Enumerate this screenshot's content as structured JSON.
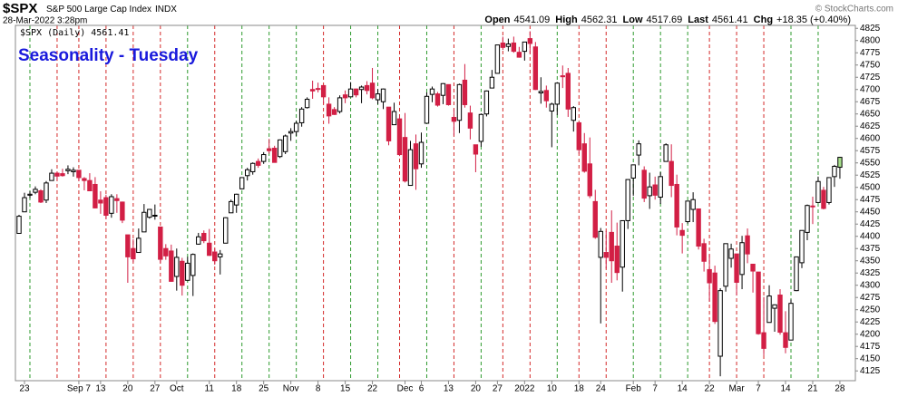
{
  "chart_data": {
    "type": "candlestick",
    "title": "Seasonality - Tuesday",
    "title_color": "#1a1adc",
    "symbol": "$SPX",
    "description": "S&P 500 Large Cap Index",
    "exchange": "INDX",
    "date": "28-Mar-2022 3:28pm",
    "quote": [
      {
        "label": "Open",
        "value": 4541.09
      },
      {
        "label": "High",
        "value": 4562.31
      },
      {
        "label": "Low",
        "value": 4517.69
      },
      {
        "label": "Last",
        "value": 4561.41
      }
    ],
    "change_label": "Chg",
    "change": "+18.35 (+0.40%)",
    "source": "© StockCharts.com",
    "legend": "$SPX (Daily) 4561.41",
    "up_color": "#ffffff",
    "down_color": "#d21f45",
    "edge_color": "#000000",
    "last_color": "#a8e08c",
    "tuesday_up_color": "#2e9a2e",
    "tuesday_down_color": "#d42a2a",
    "ylim": [
      4105,
      4831
    ],
    "yticks": [
      4125,
      4150,
      4175,
      4200,
      4225,
      4250,
      4275,
      4300,
      4325,
      4350,
      4375,
      4400,
      4425,
      4450,
      4475,
      4500,
      4525,
      4550,
      4575,
      4600,
      4625,
      4650,
      4675,
      4700,
      4725,
      4750,
      4775,
      4800,
      4825
    ],
    "categories": [
      null,
      "23",
      null,
      null,
      null,
      null,
      null,
      null,
      null,
      null,
      null,
      "Sep 7",
      null,
      null,
      null,
      "13",
      null,
      null,
      null,
      null,
      "20",
      null,
      null,
      null,
      null,
      "27",
      null,
      null,
      null,
      "Oct",
      null,
      null,
      null,
      null,
      null,
      "11",
      null,
      null,
      null,
      null,
      "18",
      null,
      null,
      null,
      null,
      "25",
      null,
      null,
      null,
      null,
      "Nov",
      null,
      null,
      null,
      null,
      "8",
      null,
      null,
      null,
      null,
      "15",
      null,
      null,
      null,
      null,
      "22",
      null,
      null,
      null,
      null,
      null,
      "Dec",
      null,
      null,
      "6",
      null,
      null,
      null,
      null,
      "13",
      null,
      null,
      null,
      null,
      "20",
      null,
      null,
      null,
      "27",
      null,
      null,
      null,
      null,
      "2022",
      null,
      null,
      null,
      null,
      "10",
      null,
      null,
      null,
      null,
      "18",
      null,
      null,
      null,
      "24",
      null,
      null,
      null,
      null,
      null,
      "Feb",
      null,
      null,
      null,
      "7",
      null,
      null,
      null,
      null,
      "14",
      null,
      null,
      null,
      null,
      "22",
      null,
      null,
      null,
      null,
      "Mar",
      null,
      null,
      null,
      "7",
      null,
      null,
      null,
      null,
      "14",
      null,
      null,
      null,
      null,
      "21",
      null,
      null,
      null,
      null,
      "28"
    ],
    "ohlc": [
      [
        4406,
        4444,
        4406,
        4441
      ],
      [
        4450,
        4489,
        4450,
        4479
      ],
      [
        4484,
        4492,
        4478,
        4486
      ],
      [
        4490,
        4502,
        4486,
        4496
      ],
      [
        4493,
        4496,
        4468,
        4470
      ],
      [
        4474,
        4513,
        4468,
        4509
      ],
      [
        4514,
        4537,
        4514,
        4529
      ],
      [
        4529,
        4531,
        4515,
        4523
      ],
      [
        4528,
        4538,
        4522,
        4524
      ],
      [
        4534,
        4545,
        4527,
        4537
      ],
      [
        4532,
        4541,
        4522,
        4535
      ],
      [
        4535,
        4535,
        4513,
        4520
      ],
      [
        4518,
        4521,
        4494,
        4514
      ],
      [
        4514,
        4529,
        4493,
        4493
      ],
      [
        4506,
        4521,
        4457,
        4458
      ],
      [
        4474,
        4492,
        4446,
        4468
      ],
      [
        4479,
        4485,
        4435,
        4443
      ],
      [
        4447,
        4486,
        4438,
        4481
      ],
      [
        4477,
        4486,
        4448,
        4473
      ],
      [
        4470,
        4471,
        4427,
        4433
      ],
      [
        4403,
        4403,
        4305,
        4358
      ],
      [
        4375,
        4394,
        4347,
        4354
      ],
      [
        4367,
        4416,
        4367,
        4396
      ],
      [
        4409,
        4466,
        4409,
        4449
      ],
      [
        4439,
        4456,
        4436,
        4455
      ],
      [
        4443,
        4465,
        4434,
        4443
      ],
      [
        4419,
        4419,
        4346,
        4353
      ],
      [
        4375,
        4384,
        4352,
        4360
      ],
      [
        4370,
        4383,
        4307,
        4308
      ],
      [
        4318,
        4375,
        4289,
        4357
      ],
      [
        4349,
        4356,
        4279,
        4300
      ],
      [
        4310,
        4358,
        4310,
        4345
      ],
      [
        4320,
        4365,
        4278,
        4363
      ],
      [
        4384,
        4407,
        4383,
        4399
      ],
      [
        4406,
        4412,
        4386,
        4391
      ],
      [
        4386,
        4415,
        4360,
        4361
      ],
      [
        4368,
        4375,
        4342,
        4350
      ],
      [
        4358,
        4372,
        4322,
        4364
      ],
      [
        4386,
        4439,
        4386,
        4438
      ],
      [
        4448,
        4475,
        4448,
        4471
      ],
      [
        4464,
        4487,
        4448,
        4486
      ],
      [
        4497,
        4520,
        4496,
        4520
      ],
      [
        4524,
        4540,
        4514,
        4536
      ],
      [
        4532,
        4551,
        4526,
        4549
      ],
      [
        4553,
        4559,
        4540,
        4545
      ],
      [
        4553,
        4572,
        4548,
        4567
      ],
      [
        4579,
        4599,
        4569,
        4575
      ],
      [
        4580,
        4585,
        4551,
        4551
      ],
      [
        4563,
        4598,
        4560,
        4597
      ],
      [
        4573,
        4608,
        4568,
        4605
      ],
      [
        4611,
        4621,
        4595,
        4614
      ],
      [
        4614,
        4636,
        4605,
        4631
      ],
      [
        4632,
        4664,
        4624,
        4660
      ],
      [
        4663,
        4684,
        4661,
        4680
      ],
      [
        4700,
        4718,
        4681,
        4697
      ],
      [
        4702,
        4714,
        4694,
        4701
      ],
      [
        4708,
        4708,
        4671,
        4685
      ],
      [
        4670,
        4684,
        4630,
        4646
      ],
      [
        4659,
        4664,
        4648,
        4649
      ],
      [
        4655,
        4688,
        4651,
        4683
      ],
      [
        4689,
        4698,
        4672,
        4683
      ],
      [
        4685,
        4715,
        4685,
        4701
      ],
      [
        4701,
        4702,
        4684,
        4689
      ],
      [
        4700,
        4708,
        4672,
        4705
      ],
      [
        4708,
        4717,
        4690,
        4698
      ],
      [
        4713,
        4744,
        4680,
        4683
      ],
      [
        4679,
        4701,
        4670,
        4691
      ],
      [
        4675,
        4702,
        4660,
        4701
      ],
      [
        4664,
        4664,
        4586,
        4595
      ],
      [
        4628,
        4673,
        4628,
        4655
      ],
      [
        4640,
        4647,
        4564,
        4567
      ],
      [
        4602,
        4652,
        4510,
        4513
      ],
      [
        4504,
        4595,
        4504,
        4577
      ],
      [
        4589,
        4608,
        4495,
        4538
      ],
      [
        4548,
        4612,
        4540,
        4592
      ],
      [
        4631,
        4694,
        4631,
        4686
      ],
      [
        4690,
        4706,
        4674,
        4701
      ],
      [
        4691,
        4695,
        4665,
        4668
      ],
      [
        4688,
        4713,
        4670,
        4712
      ],
      [
        4710,
        4710,
        4667,
        4669
      ],
      [
        4643,
        4660,
        4606,
        4635
      ],
      [
        4637,
        4712,
        4611,
        4710
      ],
      [
        4719,
        4752,
        4663,
        4669
      ],
      [
        4652,
        4667,
        4598,
        4621
      ],
      [
        4587,
        4587,
        4531,
        4568
      ],
      [
        4594,
        4651,
        4583,
        4649
      ],
      [
        4650,
        4698,
        4645,
        4697
      ],
      [
        4703,
        4740,
        4703,
        4725
      ],
      [
        4733,
        4791,
        4733,
        4791
      ],
      [
        4795,
        4808,
        4781,
        4786
      ],
      [
        4788,
        4804,
        4778,
        4793
      ],
      [
        4795,
        4808,
        4775,
        4778
      ],
      [
        4776,
        4787,
        4765,
        4766
      ],
      [
        4778,
        4796,
        4759,
        4797
      ],
      [
        4804,
        4819,
        4774,
        4794
      ],
      [
        4787,
        4797,
        4699,
        4700
      ],
      [
        4693,
        4725,
        4671,
        4696
      ],
      [
        4698,
        4708,
        4663,
        4677
      ],
      [
        4656,
        4673,
        4582,
        4670
      ],
      [
        4670,
        4715,
        4648,
        4713
      ],
      [
        4728,
        4749,
        4703,
        4726
      ],
      [
        4733,
        4744,
        4644,
        4660
      ],
      [
        4637,
        4666,
        4614,
        4663
      ],
      [
        4632,
        4632,
        4569,
        4577
      ],
      [
        4589,
        4611,
        4530,
        4533
      ],
      [
        4548,
        4602,
        4478,
        4483
      ],
      [
        4471,
        4495,
        4395,
        4398
      ],
      [
        4357,
        4417,
        4222,
        4410
      ],
      [
        4367,
        4411,
        4334,
        4357
      ],
      [
        4408,
        4453,
        4305,
        4350
      ],
      [
        4380,
        4428,
        4310,
        4326
      ],
      [
        4337,
        4432,
        4287,
        4432
      ],
      [
        4432,
        4516,
        4415,
        4516
      ],
      [
        4519,
        4546,
        4483,
        4546
      ],
      [
        4566,
        4596,
        4545,
        4589
      ],
      [
        4535,
        4543,
        4470,
        4478
      ],
      [
        4483,
        4530,
        4456,
        4501
      ],
      [
        4505,
        4522,
        4475,
        4484
      ],
      [
        4480,
        4531,
        4466,
        4522
      ],
      [
        4553,
        4590,
        4553,
        4587
      ],
      [
        4553,
        4588,
        4480,
        4504
      ],
      [
        4506,
        4526,
        4402,
        4419
      ],
      [
        4412,
        4427,
        4365,
        4402
      ],
      [
        4430,
        4472,
        4426,
        4472
      ],
      [
        4455,
        4490,
        4429,
        4475
      ],
      [
        4456,
        4456,
        4373,
        4380
      ],
      [
        4385,
        4395,
        4328,
        4349
      ],
      [
        4332,
        4363,
        4267,
        4305
      ],
      [
        4325,
        4340,
        4221,
        4226
      ],
      [
        4155,
        4294,
        4114,
        4289
      ],
      [
        4298,
        4385,
        4287,
        4385
      ],
      [
        4355,
        4385,
        4336,
        4374
      ],
      [
        4364,
        4364,
        4279,
        4306
      ],
      [
        4322,
        4401,
        4292,
        4387
      ],
      [
        4401,
        4416,
        4345,
        4364
      ],
      [
        4343,
        4343,
        4285,
        4329
      ],
      [
        4327,
        4327,
        4199,
        4201
      ],
      [
        4203,
        4276,
        4157,
        4171
      ],
      [
        4224,
        4300,
        4224,
        4278
      ],
      [
        4253,
        4261,
        4205,
        4260
      ],
      [
        4280,
        4292,
        4199,
        4204
      ],
      [
        4203,
        4247,
        4161,
        4173
      ],
      [
        4188,
        4271,
        4188,
        4263
      ],
      [
        4289,
        4358,
        4288,
        4358
      ],
      [
        4346,
        4412,
        4335,
        4412
      ],
      [
        4408,
        4465,
        4392,
        4463
      ],
      [
        4462,
        4481,
        4425,
        4461
      ],
      [
        4469,
        4522,
        4469,
        4512
      ],
      [
        4494,
        4501,
        4455,
        4457
      ],
      [
        4469,
        4520,
        4465,
        4520
      ],
      [
        4522,
        4546,
        4501,
        4543
      ],
      [
        4541.09,
        4562.31,
        4517.69,
        4561.41
      ]
    ]
  }
}
